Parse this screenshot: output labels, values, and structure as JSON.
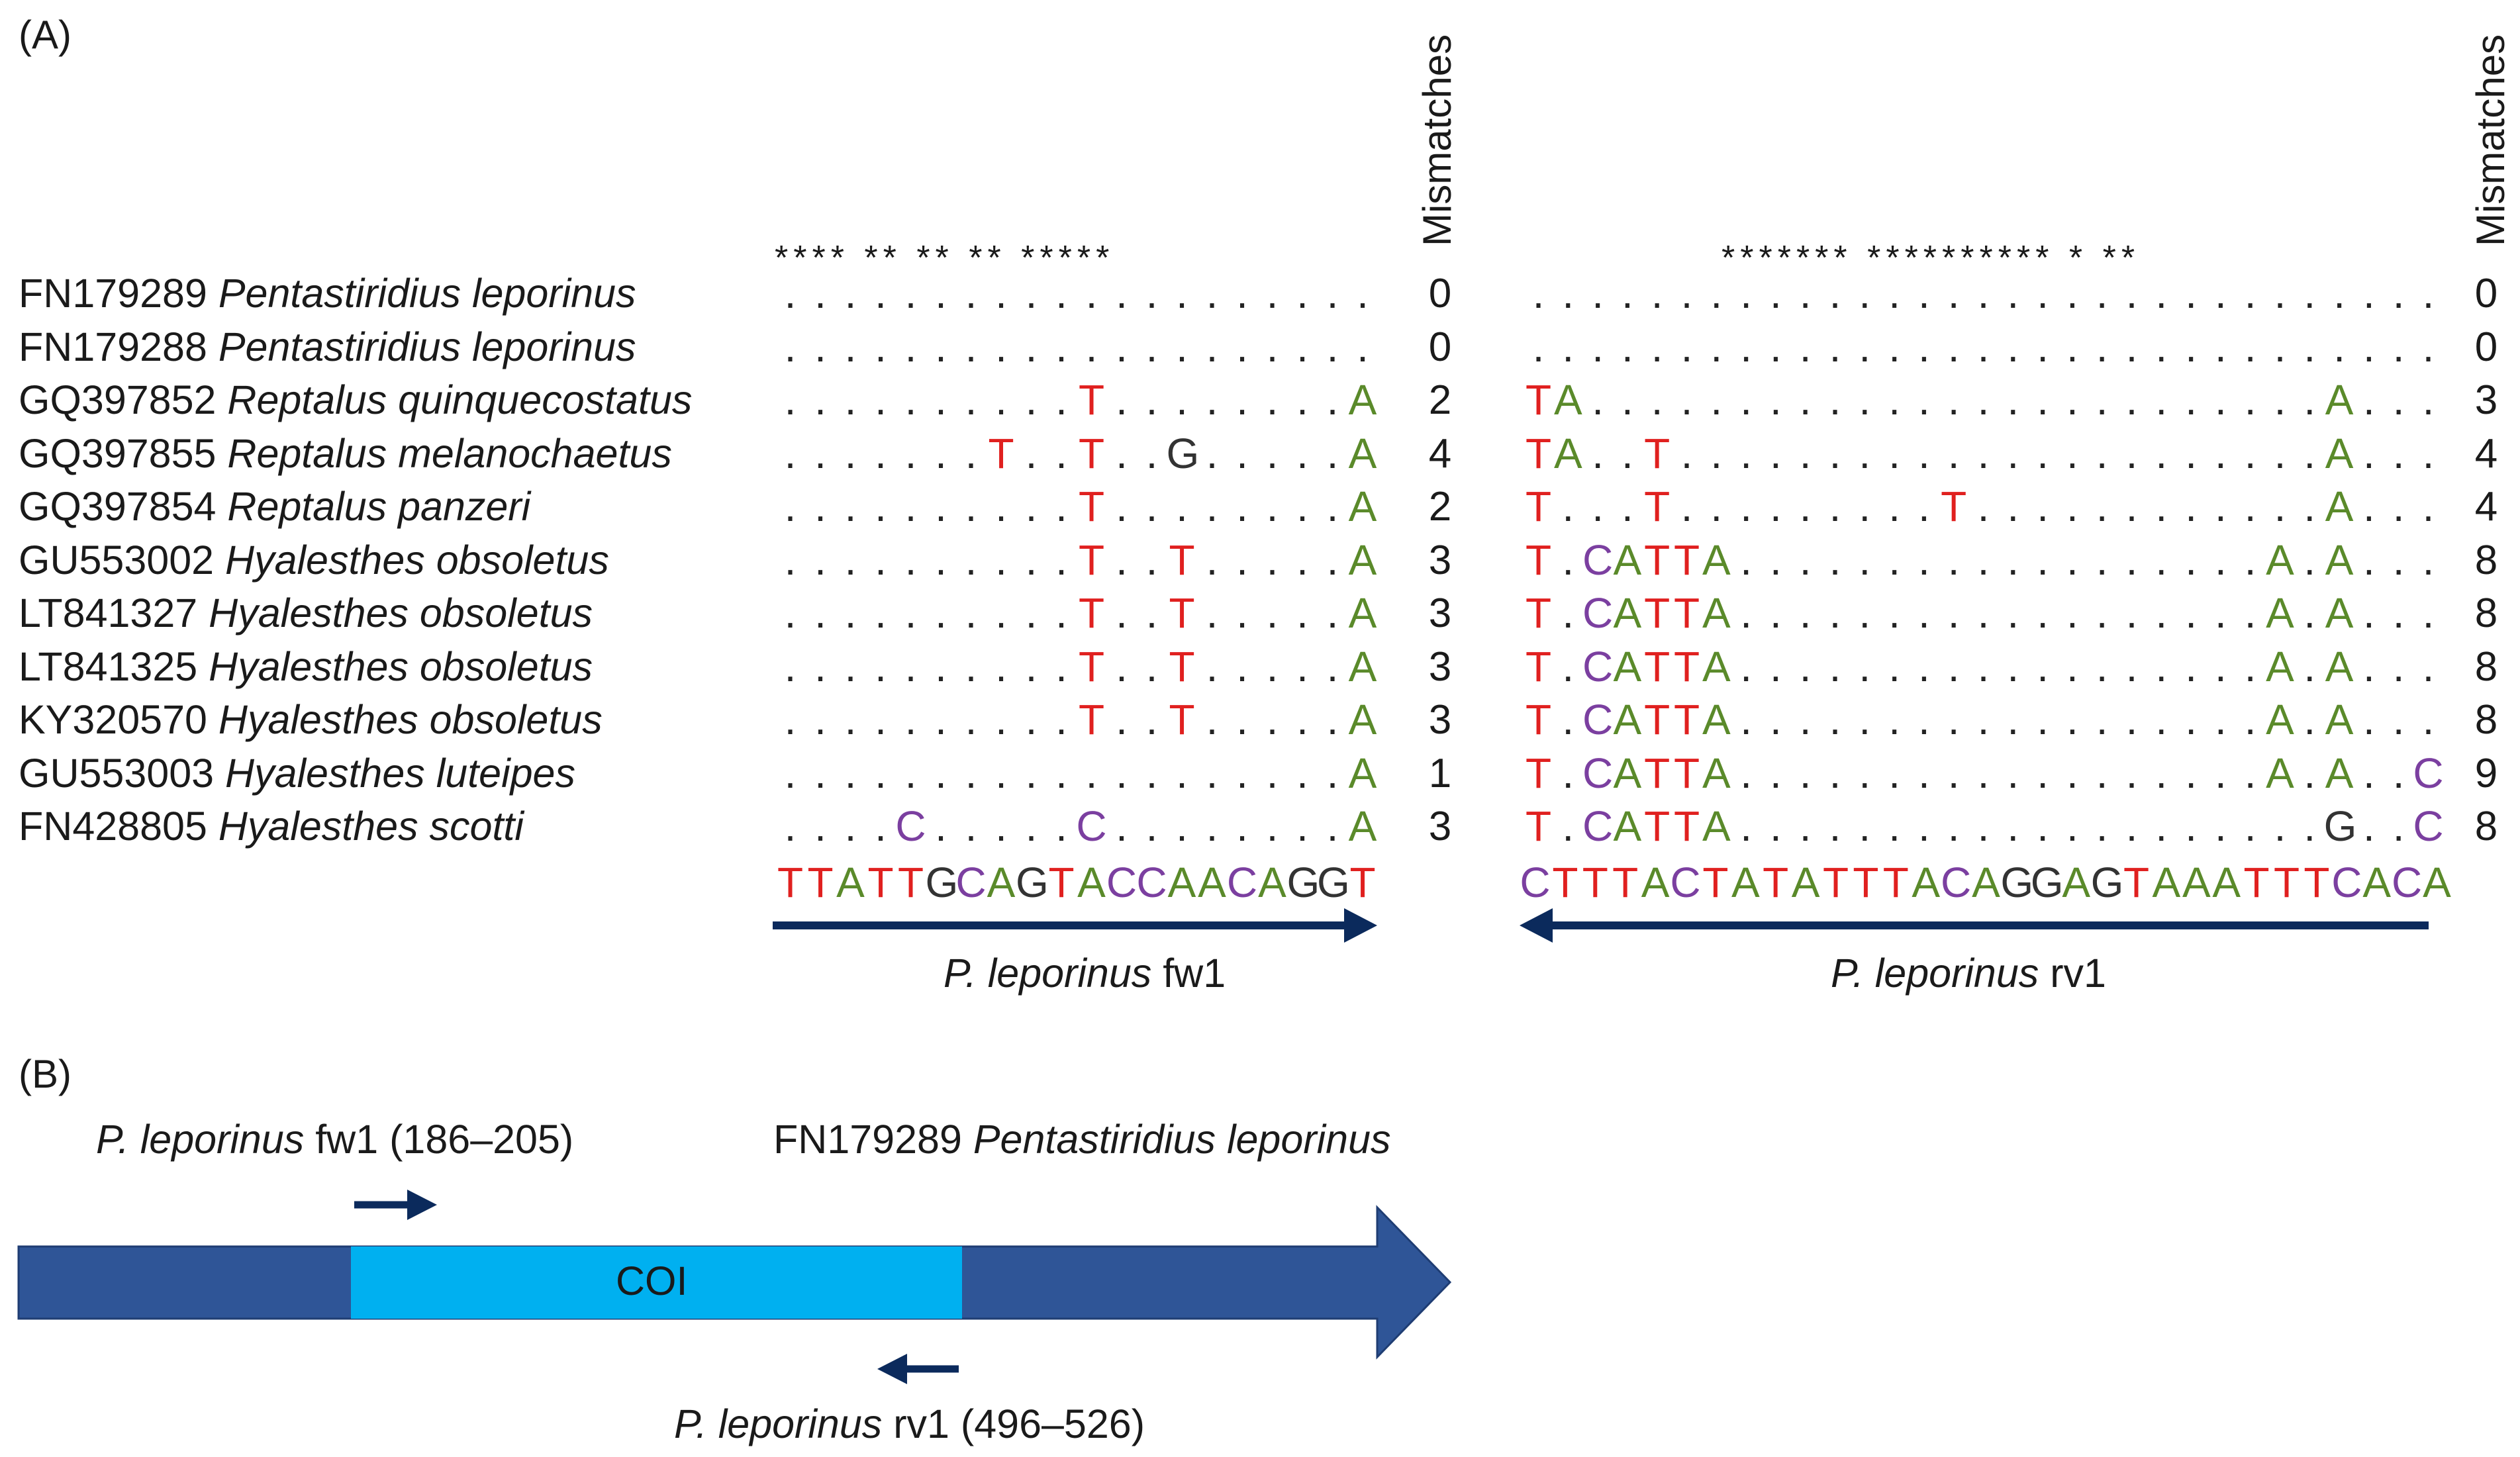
{
  "panel_a": {
    "label": "(A)",
    "mismatch_header": "Mismatches",
    "fw": {
      "stars": "****  **   **   **   *****",
      "reference": "TTATTGCAGTACCAACAGGT",
      "primer_name": "P. leporinus",
      "primer_suffix": "fw1"
    },
    "rv": {
      "stars": "*******  **********  *  **",
      "reference": "CTTTACTATATTTACAGGAGTAAATTTCACA",
      "primer_name": "P. leporinus",
      "primer_suffix": "rv1"
    },
    "rows": [
      {
        "accession": "FN179289",
        "species": "Pentastiridius leporinus",
        "fw": "....................",
        "fw_mm": "0",
        "rv": "...............................",
        "rv_mm": "0"
      },
      {
        "accession": "FN179288",
        "species": "Pentastiridius leporinus",
        "fw": "....................",
        "fw_mm": "0",
        "rv": "...............................",
        "rv_mm": "0"
      },
      {
        "accession": "GQ397852",
        "species": "Reptalus quinquecostatus",
        "fw": "..........T........A",
        "fw_mm": "2",
        "rv": "TA.........................A...",
        "rv_mm": "3"
      },
      {
        "accession": "GQ397855",
        "species": "Reptalus melanochaetus",
        "fw": ".......T..T..G.....A",
        "fw_mm": "4",
        "rv": "TA..T......................A...",
        "rv_mm": "4"
      },
      {
        "accession": "GQ397854",
        "species": "Reptalus panzeri",
        "fw": "..........T........A",
        "fw_mm": "2",
        "rv": "T...T.........T............A...",
        "rv_mm": "4"
      },
      {
        "accession": "GU553002",
        "species": "Hyalesthes obsoletus",
        "fw": "..........T..T.....A",
        "fw_mm": "3",
        "rv": "T.CATTA..................A.A...",
        "rv_mm": "8"
      },
      {
        "accession": "LT841327",
        "species": "Hyalesthes obsoletus",
        "fw": "..........T..T.....A",
        "fw_mm": "3",
        "rv": "T.CATTA..................A.A...",
        "rv_mm": "8"
      },
      {
        "accession": "LT841325",
        "species": "Hyalesthes obsoletus",
        "fw": "..........T..T.....A",
        "fw_mm": "3",
        "rv": "T.CATTA..................A.A...",
        "rv_mm": "8"
      },
      {
        "accession": "KY320570",
        "species": "Hyalesthes obsoletus",
        "fw": "..........T..T.....A",
        "fw_mm": "3",
        "rv": "T.CATTA..................A.A...",
        "rv_mm": "8"
      },
      {
        "accession": "GU553003",
        "species": "Hyalesthes luteipes",
        "fw": "...................A",
        "fw_mm": "1",
        "rv": "T.CATTA..................A.A..C",
        "rv_mm": "9"
      },
      {
        "accession": "FN428805",
        "species": "Hyalesthes scotti",
        "fw": "....C.....C........A",
        "fw_mm": "3",
        "rv": "T.CATTA....................G..C",
        "rv_mm": "8"
      }
    ]
  },
  "panel_b": {
    "label": "(B)",
    "fw_primer": {
      "name": "P. leporinus",
      "suffix": "fw1",
      "range": "(186–205)"
    },
    "rv_primer": {
      "name": "P. leporinus",
      "suffix": "rv1",
      "range": "(496–526)"
    },
    "reference": {
      "accession": "FN179289",
      "species": "Pentastiridius leporinus"
    },
    "gene_label": "COI"
  },
  "colors": {
    "T": "#e0201f",
    "A": "#5a8a2a",
    "C": "#7b3fa0",
    "G": "#333333",
    "arrow": "#0b2a5c",
    "gene_bar": "#2f5597",
    "coi_box": "#00b0f0"
  }
}
